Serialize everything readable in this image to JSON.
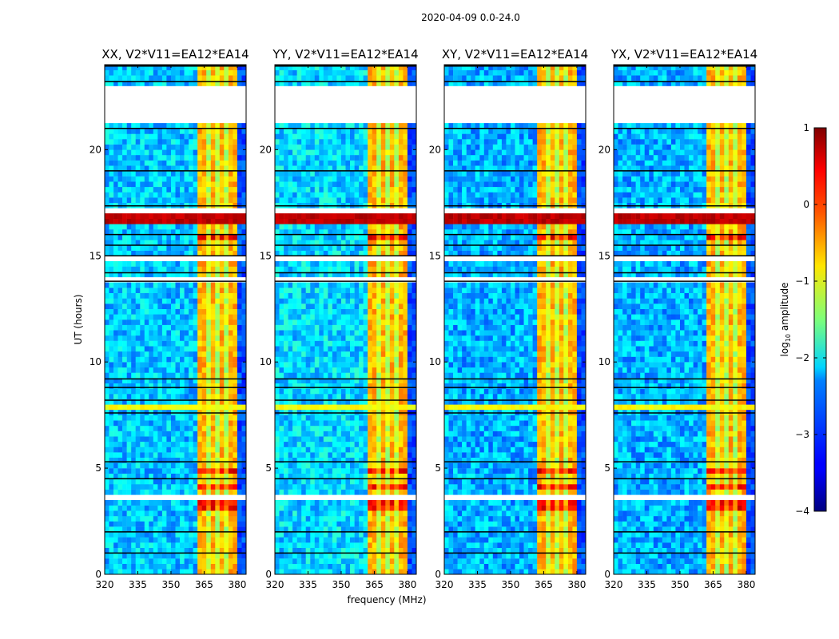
{
  "chart_data": {
    "type": "heatmap",
    "title": "2020-04-09 0.0-24.0",
    "xlabel": "frequency (MHz)",
    "ylabel": "UT (hours)",
    "xlim": [
      320,
      384
    ],
    "ylim": [
      0,
      24
    ],
    "xticks": [
      "320",
      "335",
      "350",
      "365",
      "380"
    ],
    "xtick_values": [
      320,
      335,
      350,
      365,
      380
    ],
    "yticks": [
      "0",
      "5",
      "10",
      "15",
      "20"
    ],
    "ytick_values": [
      0,
      5,
      10,
      15,
      20
    ],
    "panels": [
      {
        "title": "XX, V2*V11=EA12*EA14",
        "background": -2.4
      },
      {
        "title": "YY, V2*V11=EA12*EA14",
        "background": -2.3
      },
      {
        "title": "XY, V2*V11=EA12*EA14",
        "background": -2.5
      },
      {
        "title": "YX, V2*V11=EA12*EA14",
        "background": -2.5
      }
    ],
    "colorbar": {
      "label": "log10 amplitude",
      "label_main": "log",
      "label_sub": "10",
      "label_rest": " amplitude",
      "colormap": "jet",
      "range": [
        -4,
        1
      ],
      "ticks": [
        "1",
        "0",
        "−1",
        "−2",
        "−3",
        "−4"
      ],
      "tick_values": [
        1,
        0,
        -1,
        -2,
        -3,
        -4
      ]
    },
    "features": {
      "rfi_band_mhz": [
        362,
        381
      ],
      "rfi_level": -0.5,
      "rfi_channel_gaps_mhz": [
        367,
        371,
        375
      ],
      "strong_rfi_hours": [
        [
          15.7,
          16.0
        ],
        [
          14.7,
          15.0
        ],
        [
          4.8,
          5.1
        ],
        [
          3.9,
          4.3
        ],
        [
          2.9,
          3.4
        ]
      ],
      "strong_rfi_level": 0.4,
      "broadband_bursts": [
        {
          "hours": [
            16.5,
            16.9
          ],
          "level": 0.7
        },
        {
          "hours": [
            7.8,
            8.0
          ],
          "level": -0.9
        }
      ],
      "flagged_hours": [
        [
          21.35,
          23.0
        ],
        [
          17.0,
          17.3
        ],
        [
          14.85,
          15.0
        ],
        [
          13.85,
          13.95
        ],
        [
          3.55,
          3.65
        ],
        [
          1.75,
          1.85
        ]
      ],
      "flag_edge_lines_hours": [
        23.2,
        21.0,
        19.0,
        17.35,
        16.0,
        15.5,
        15.0,
        14.2,
        13.8,
        9.2,
        8.8,
        8.2,
        7.6,
        5.3,
        4.5,
        2.0,
        1.0
      ],
      "band_edge_level": -3.0,
      "band_edge_mhz": [
        381,
        384
      ]
    }
  }
}
